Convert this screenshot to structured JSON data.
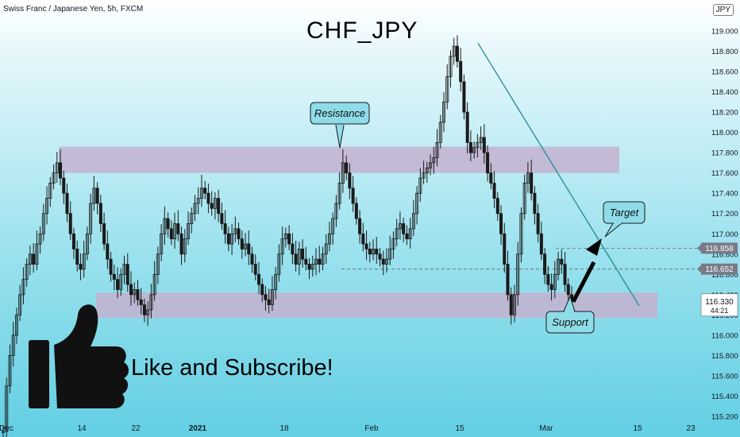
{
  "header": {
    "series_title": "Swiss Franc / Japanese Yen, 5h, FXCM",
    "symbol_badge": "JPY",
    "chart_title": "CHF_JPY"
  },
  "promo": {
    "text": "Like and Subscribe!",
    "icon": "thumbs-up-icon"
  },
  "colors": {
    "zone": "#c4b2d0",
    "trendline": "#2c8f9a",
    "arrow": "#000000",
    "candle": "#1a1a1a"
  },
  "chart_data": {
    "type": "candlestick",
    "y_axis": {
      "range": [
        115.05,
        119.2
      ],
      "ticks": [
        "115.200",
        "115.400",
        "115.600",
        "115.800",
        "116.000",
        "116.200",
        "116.400",
        "116.600",
        "116.800",
        "117.000",
        "117.200",
        "117.400",
        "117.600",
        "117.800",
        "118.000",
        "118.200",
        "118.400",
        "118.600",
        "118.800",
        "119.000"
      ]
    },
    "x_axis": {
      "ticks": [
        "Dec",
        "14",
        "22",
        "2021",
        "18",
        "Feb",
        "15",
        "Mar",
        "15",
        "23"
      ],
      "bold_ticks": [
        "2021"
      ]
    },
    "price_labels": [
      {
        "value": "116.858",
        "style": "gray"
      },
      {
        "value": "116.652",
        "style": "gray"
      },
      {
        "value": "116.330",
        "style": "current",
        "countdown": "44:21"
      }
    ],
    "zones": [
      {
        "label": "Resistance",
        "from": 117.6,
        "to": 117.86
      },
      {
        "label": "Support",
        "from": 116.17,
        "to": 116.42
      }
    ],
    "levels": [
      116.858,
      116.652
    ],
    "trendline": {
      "from_price": 118.88,
      "to_price": 116.29
    },
    "annotations": [
      "Resistance",
      "Target",
      "Support"
    ],
    "closes": [
      115.05,
      115.5,
      115.8,
      116.0,
      116.2,
      116.4,
      116.55,
      116.7,
      116.8,
      116.7,
      116.9,
      117.0,
      117.2,
      117.35,
      117.5,
      117.6,
      117.7,
      117.55,
      117.4,
      117.2,
      117.0,
      116.85,
      116.7,
      116.65,
      116.8,
      117.0,
      117.3,
      117.45,
      117.3,
      117.1,
      116.9,
      116.75,
      116.6,
      116.55,
      116.45,
      116.6,
      116.7,
      116.5,
      116.4,
      116.45,
      116.35,
      116.3,
      116.2,
      116.25,
      116.4,
      116.6,
      116.8,
      117.0,
      117.15,
      117.05,
      116.95,
      117.1,
      117.0,
      116.8,
      116.95,
      117.1,
      117.2,
      117.3,
      117.35,
      117.45,
      117.4,
      117.3,
      117.25,
      117.35,
      117.2,
      117.1,
      117.0,
      116.9,
      117.0,
      117.05,
      116.95,
      116.85,
      116.9,
      116.8,
      116.7,
      116.6,
      116.5,
      116.4,
      116.35,
      116.3,
      116.45,
      116.6,
      116.8,
      116.95,
      117.0,
      116.9,
      116.8,
      116.7,
      116.85,
      116.75,
      116.7,
      116.65,
      116.7,
      116.75,
      116.7,
      116.8,
      116.9,
      117.0,
      117.15,
      117.3,
      117.5,
      117.7,
      117.6,
      117.45,
      117.3,
      117.15,
      117.0,
      116.9,
      116.85,
      116.8,
      116.85,
      116.8,
      116.75,
      116.7,
      116.75,
      116.85,
      116.95,
      117.05,
      117.1,
      117.0,
      116.95,
      117.05,
      117.2,
      117.4,
      117.55,
      117.6,
      117.65,
      117.7,
      117.75,
      117.9,
      118.1,
      118.3,
      118.55,
      118.75,
      118.85,
      118.7,
      118.5,
      118.2,
      117.9,
      117.8,
      117.85,
      117.9,
      117.95,
      117.8,
      117.6,
      117.5,
      117.35,
      117.2,
      117.0,
      116.7,
      116.4,
      116.2,
      116.4,
      116.8,
      117.2,
      117.5,
      117.6,
      117.4,
      117.2,
      117.0,
      116.8,
      116.6,
      116.5,
      116.45,
      116.6,
      116.75,
      116.7,
      116.5,
      116.4,
      116.33
    ]
  }
}
